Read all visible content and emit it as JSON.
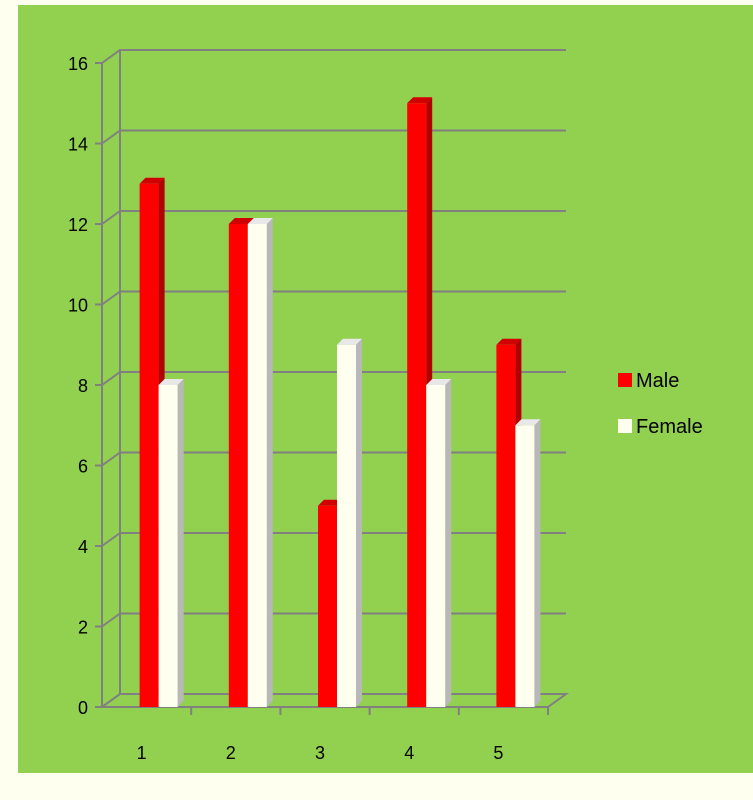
{
  "colors": {
    "panel_background": "#92d050",
    "page_background": "#fffff0",
    "gridline": "#808080",
    "male_front": "#ff0000",
    "male_side": "#b00000",
    "male_top": "#d00000",
    "female_front": "#fffff0",
    "female_side": "#b8b8b8",
    "female_top": "#e8e8e8"
  },
  "chart_data": {
    "type": "bar",
    "style": "3d-clustered-column",
    "categories": [
      "1",
      "2",
      "3",
      "4",
      "5"
    ],
    "series": [
      {
        "name": "Male",
        "values": [
          13,
          12,
          5,
          15,
          9
        ]
      },
      {
        "name": "Female",
        "values": [
          8,
          12,
          9,
          8,
          7
        ]
      }
    ],
    "title": "",
    "xlabel": "",
    "ylabel": "",
    "ylim": [
      0,
      16
    ],
    "y_ticks": [
      "0",
      "2",
      "4",
      "6",
      "8",
      "10",
      "12",
      "14",
      "16"
    ],
    "grid": true,
    "legend": "right"
  }
}
